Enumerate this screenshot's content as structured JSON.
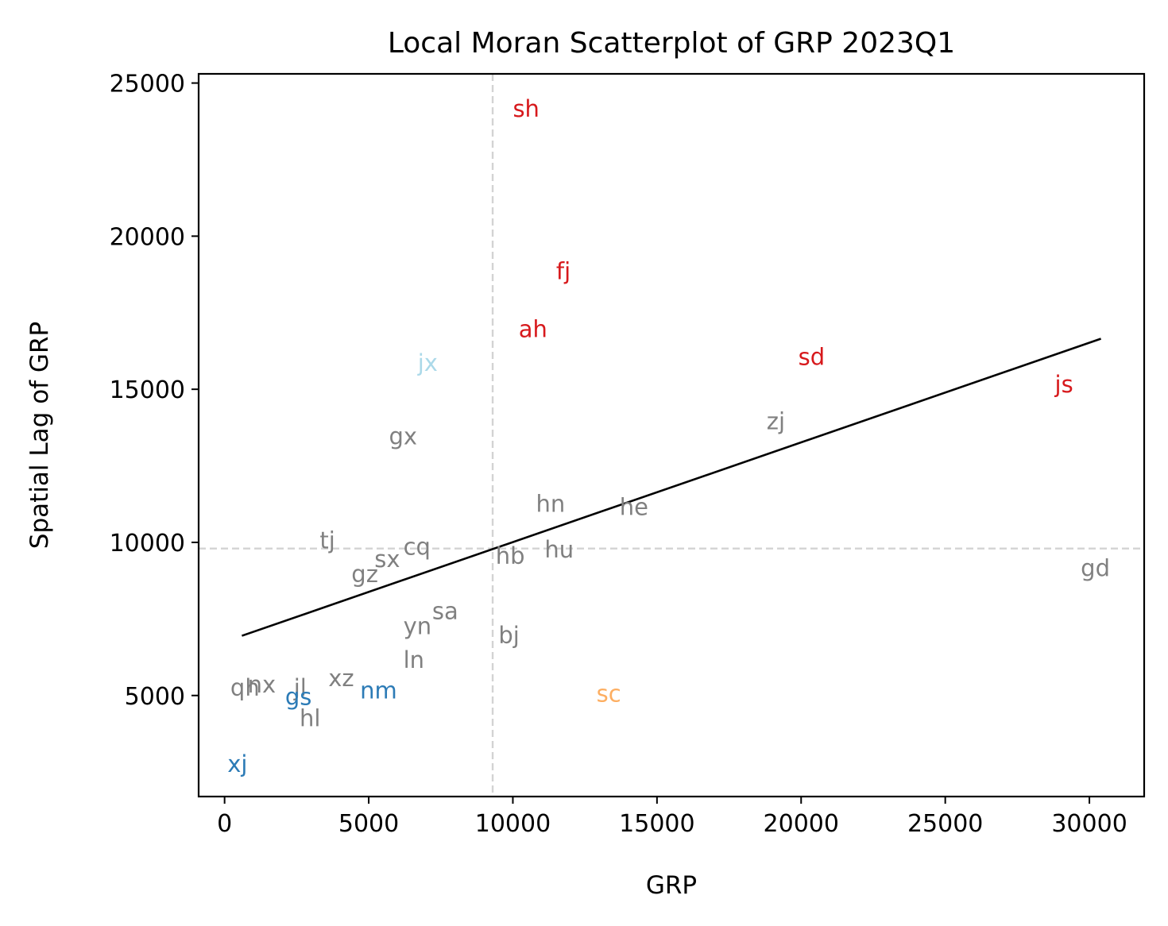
{
  "chart_data": {
    "type": "scatter",
    "title": "Local Moran Scatterplot of GRP 2023Q1",
    "xlabel": "GRP",
    "ylabel": "Spatial Lag of GRP",
    "xlim": [
      -900,
      31900
    ],
    "ylim": [
      1700,
      25300
    ],
    "xticks": [
      0,
      5000,
      10000,
      15000,
      20000,
      25000,
      30000
    ],
    "yticks": [
      5000,
      10000,
      15000,
      20000,
      25000
    ],
    "grid": false,
    "mean_lines": {
      "x": 9300,
      "y": 9800,
      "color": "#d3d3d3",
      "style": "dashed"
    },
    "fit_line": {
      "x": [
        600,
        30400
      ],
      "y": [
        6950,
        16650
      ],
      "color": "#000000"
    },
    "colors": {
      "high-high": "#d7191c",
      "low-high": "#abd9e9",
      "low-low": "#2c7bb6",
      "high-low": "#fdae61",
      "not-significant": "#808080"
    },
    "points": [
      {
        "label": "sh",
        "x": 10000,
        "y": 23900,
        "cls": "high-high"
      },
      {
        "label": "fj",
        "x": 11500,
        "y": 18600,
        "cls": "high-high"
      },
      {
        "label": "ah",
        "x": 10200,
        "y": 16700,
        "cls": "high-high"
      },
      {
        "label": "sd",
        "x": 19900,
        "y": 15800,
        "cls": "high-high"
      },
      {
        "label": "js",
        "x": 28800,
        "y": 14900,
        "cls": "high-high"
      },
      {
        "label": "jx",
        "x": 6700,
        "y": 15600,
        "cls": "low-high"
      },
      {
        "label": "gx",
        "x": 5700,
        "y": 13200,
        "cls": "not-significant"
      },
      {
        "label": "zj",
        "x": 18800,
        "y": 13700,
        "cls": "not-significant"
      },
      {
        "label": "hn",
        "x": 10800,
        "y": 11000,
        "cls": "not-significant"
      },
      {
        "label": "he",
        "x": 13700,
        "y": 10900,
        "cls": "not-significant"
      },
      {
        "label": "tj",
        "x": 3300,
        "y": 9800,
        "cls": "not-significant"
      },
      {
        "label": "cq",
        "x": 6200,
        "y": 9600,
        "cls": "not-significant"
      },
      {
        "label": "hu",
        "x": 11100,
        "y": 9500,
        "cls": "not-significant"
      },
      {
        "label": "hb",
        "x": 9400,
        "y": 9300,
        "cls": "not-significant"
      },
      {
        "label": "sx",
        "x": 5200,
        "y": 9200,
        "cls": "not-significant"
      },
      {
        "label": "gz",
        "x": 4400,
        "y": 8700,
        "cls": "not-significant"
      },
      {
        "label": "gd",
        "x": 29700,
        "y": 8900,
        "cls": "not-significant"
      },
      {
        "label": "sa",
        "x": 7200,
        "y": 7500,
        "cls": "not-significant"
      },
      {
        "label": "yn",
        "x": 6200,
        "y": 7000,
        "cls": "not-significant"
      },
      {
        "label": "bj",
        "x": 9500,
        "y": 6700,
        "cls": "not-significant"
      },
      {
        "label": "ln",
        "x": 6200,
        "y": 5900,
        "cls": "not-significant"
      },
      {
        "label": "xz",
        "x": 3600,
        "y": 5300,
        "cls": "not-significant"
      },
      {
        "label": "qh",
        "x": 200,
        "y": 5000,
        "cls": "not-significant"
      },
      {
        "label": "nx",
        "x": 800,
        "y": 5100,
        "cls": "not-significant"
      },
      {
        "label": "jl",
        "x": 2400,
        "y": 5000,
        "cls": "not-significant"
      },
      {
        "label": "hl",
        "x": 2600,
        "y": 4000,
        "cls": "not-significant"
      },
      {
        "label": "gs",
        "x": 2100,
        "y": 4700,
        "cls": "low-low"
      },
      {
        "label": "nm",
        "x": 4700,
        "y": 4900,
        "cls": "low-low"
      },
      {
        "label": "sc",
        "x": 12900,
        "y": 4800,
        "cls": "high-low"
      },
      {
        "label": "xj",
        "x": 100,
        "y": 2500,
        "cls": "low-low"
      }
    ]
  }
}
